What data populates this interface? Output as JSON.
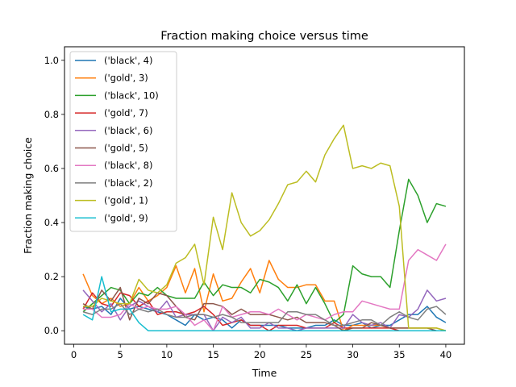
{
  "chart_data": {
    "type": "line",
    "title": "Fraction making choice versus time",
    "xlabel": "Time",
    "ylabel": "Fraction making choice",
    "xlim": [
      -1,
      42
    ],
    "ylim": [
      -0.05,
      1.05
    ],
    "xticks": [
      0,
      5,
      10,
      15,
      20,
      25,
      30,
      35,
      40
    ],
    "yticks": [
      0.0,
      0.2,
      0.4,
      0.6,
      0.8,
      1.0
    ],
    "grid": false,
    "legend_position": "upper-left",
    "x": [
      1,
      2,
      3,
      4,
      5,
      6,
      7,
      8,
      9,
      10,
      11,
      12,
      13,
      14,
      15,
      16,
      17,
      18,
      19,
      20,
      21,
      22,
      23,
      24,
      25,
      26,
      27,
      28,
      29,
      30,
      31,
      32,
      33,
      34,
      35,
      36,
      37,
      38,
      39,
      40
    ],
    "series": [
      {
        "name": "('black', 4)",
        "color": "#1f77b4",
        "values": [
          0.09,
          0.08,
          0.09,
          0.06,
          0.12,
          0.08,
          0.09,
          0.08,
          0.07,
          0.06,
          0.04,
          0.02,
          0.06,
          0.04,
          0.05,
          0.04,
          0.01,
          0.04,
          0.02,
          0.02,
          0.02,
          0.02,
          0.01,
          0.01,
          0.01,
          0.02,
          0.02,
          0.04,
          0.02,
          0.02,
          0.03,
          0.01,
          0.02,
          0.02,
          0.04,
          0.06,
          0.06,
          0.09,
          0.05,
          0.03
        ]
      },
      {
        "name": "('gold', 3)",
        "color": "#ff7f0e",
        "values": [
          0.21,
          0.13,
          0.1,
          0.12,
          0.09,
          0.1,
          0.16,
          0.11,
          0.13,
          0.16,
          0.24,
          0.14,
          0.23,
          0.07,
          0.21,
          0.11,
          0.12,
          0.18,
          0.23,
          0.14,
          0.26,
          0.19,
          0.16,
          0.16,
          0.17,
          0.17,
          0.11,
          0.11,
          0.0,
          0.02,
          0.02,
          0.02,
          0.02,
          0.01,
          0.01,
          0.01,
          0.01,
          0.01,
          0.01,
          0.0
        ]
      },
      {
        "name": "('black', 10)",
        "color": "#2ca02c",
        "values": [
          0.07,
          0.1,
          0.13,
          0.16,
          0.15,
          0.1,
          0.14,
          0.13,
          0.16,
          0.13,
          0.12,
          0.12,
          0.12,
          0.18,
          0.13,
          0.17,
          0.16,
          0.16,
          0.14,
          0.19,
          0.18,
          0.16,
          0.11,
          0.17,
          0.1,
          0.16,
          0.1,
          0.03,
          0.06,
          0.24,
          0.21,
          0.2,
          0.2,
          0.16,
          0.37,
          0.56,
          0.5,
          0.4,
          0.47,
          0.46
        ]
      },
      {
        "name": "('gold', 7)",
        "color": "#d62728",
        "values": [
          0.08,
          0.14,
          0.1,
          0.09,
          0.14,
          0.13,
          0.09,
          0.11,
          0.06,
          0.07,
          0.07,
          0.06,
          0.07,
          0.09,
          0.06,
          0.02,
          0.03,
          0.04,
          0.02,
          0.02,
          0.0,
          0.02,
          0.02,
          0.02,
          0.01,
          0.01,
          0.01,
          0.03,
          0.01,
          0.01,
          0.01,
          0.01,
          0.01,
          0.01,
          0.0,
          0.0,
          0.0,
          0.0,
          0.0,
          0.0
        ]
      },
      {
        "name": "('black', 6)",
        "color": "#9467bd",
        "values": [
          0.15,
          0.11,
          0.07,
          0.1,
          0.04,
          0.09,
          0.11,
          0.09,
          0.07,
          0.11,
          0.05,
          0.06,
          0.06,
          0.06,
          0.0,
          0.05,
          0.03,
          0.05,
          0.01,
          0.01,
          0.03,
          0.01,
          0.01,
          0.0,
          0.01,
          0.01,
          0.01,
          0.01,
          0.01,
          0.06,
          0.03,
          0.02,
          0.03,
          0.01,
          0.06,
          0.05,
          0.08,
          0.15,
          0.11,
          0.12
        ]
      },
      {
        "name": "('gold', 5)",
        "color": "#8c564b",
        "values": [
          0.1,
          0.08,
          0.15,
          0.11,
          0.16,
          0.04,
          0.12,
          0.1,
          0.14,
          0.13,
          0.09,
          0.05,
          0.04,
          0.1,
          0.1,
          0.09,
          0.06,
          0.08,
          0.06,
          0.06,
          0.06,
          0.05,
          0.04,
          0.05,
          0.03,
          0.03,
          0.03,
          0.02,
          0.0,
          0.01,
          0.01,
          0.03,
          0.02,
          0.01,
          0.01,
          0.01,
          0.01,
          0.01,
          0.0,
          0.0
        ]
      },
      {
        "name": "('black', 8)",
        "color": "#e377c2",
        "values": [
          0.08,
          0.08,
          0.05,
          0.05,
          0.06,
          0.1,
          0.08,
          0.09,
          0.08,
          0.08,
          0.09,
          0.06,
          0.02,
          0.04,
          0.0,
          0.09,
          0.05,
          0.06,
          0.07,
          0.07,
          0.06,
          0.08,
          0.06,
          0.04,
          0.06,
          0.05,
          0.04,
          0.06,
          0.07,
          0.07,
          0.11,
          0.1,
          0.09,
          0.08,
          0.08,
          0.26,
          0.3,
          0.28,
          0.26,
          0.32
        ]
      },
      {
        "name": "('black', 2)",
        "color": "#7f7f7f",
        "values": [
          0.07,
          0.06,
          0.08,
          0.08,
          0.1,
          0.06,
          0.08,
          0.07,
          0.08,
          0.06,
          0.05,
          0.05,
          0.06,
          0.06,
          0.05,
          0.06,
          0.05,
          0.03,
          0.03,
          0.03,
          0.03,
          0.03,
          0.07,
          0.07,
          0.06,
          0.06,
          0.04,
          0.02,
          0.02,
          0.03,
          0.04,
          0.04,
          0.02,
          0.05,
          0.07,
          0.05,
          0.04,
          0.08,
          0.09,
          0.06
        ]
      },
      {
        "name": "('gold', 1)",
        "color": "#bcbd22",
        "values": [
          0.09,
          0.09,
          0.12,
          0.11,
          0.1,
          0.1,
          0.19,
          0.15,
          0.14,
          0.17,
          0.25,
          0.27,
          0.32,
          0.17,
          0.42,
          0.3,
          0.51,
          0.4,
          0.35,
          0.37,
          0.41,
          0.47,
          0.54,
          0.55,
          0.59,
          0.55,
          0.65,
          0.71,
          0.76,
          0.6,
          0.61,
          0.6,
          0.62,
          0.61,
          0.46,
          0.01,
          0.01,
          0.01,
          0.01,
          0.0
        ]
      },
      {
        "name": "('gold', 9)",
        "color": "#17becf",
        "values": [
          0.06,
          0.04,
          0.2,
          0.07,
          0.08,
          0.08,
          0.03,
          0.0,
          0.0,
          0.0,
          0.0,
          0.0,
          0.0,
          0.0,
          0.0,
          0.0,
          0.0,
          0.0,
          0.0,
          0.0,
          0.0,
          0.0,
          0.0,
          0.0,
          0.0,
          0.0,
          0.0,
          0.0,
          0.0,
          0.0,
          0.0,
          0.0,
          0.0,
          0.0,
          0.0,
          0.0,
          0.0,
          0.0,
          0.0,
          0.0
        ]
      }
    ]
  }
}
